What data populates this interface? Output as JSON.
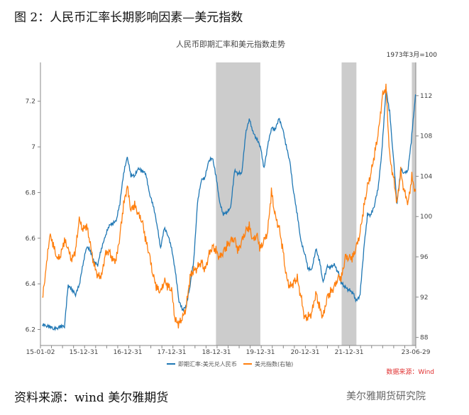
{
  "figure_title": "图 2：人民币汇率长期影响因素—美元指数",
  "source_note": "资料来源：wind 美尔雅期货",
  "watermark": "美尔雅期货研究院",
  "chart_data": {
    "type": "line",
    "title": "人民币即期汇率和美元指数走势",
    "right_axis_unit": "1973年3月=100",
    "data_source": "数据来源：Wind",
    "x_tick_labels": [
      "15-01-02",
      "15-12-31",
      "16-12-31",
      "17-12-31",
      "18-12-31",
      "19-12-31",
      "20-12-31",
      "21-12-31",
      "23-06-29"
    ],
    "left_axis": {
      "ticks": [
        "6.2",
        "6.4",
        "6.6",
        "6.8",
        "7",
        "7.2"
      ],
      "range": [
        6.13,
        7.37
      ]
    },
    "right_axis": {
      "ticks": [
        "88",
        "92",
        "96",
        "100",
        "104",
        "108",
        "112"
      ],
      "range": [
        87.2,
        115.3
      ]
    },
    "shaded_periods": [
      [
        "2018-12",
        "2019-12"
      ],
      [
        "2021-10",
        "2022-02"
      ],
      [
        "2023-05",
        "2023-06"
      ]
    ],
    "colors": {
      "cny": "#1f77b4",
      "dxy": "#ff7f0e",
      "shade": "#cccccc",
      "source": "#e03030"
    },
    "x": [
      "2015-01",
      "2015-02",
      "2015-03",
      "2015-04",
      "2015-05",
      "2015-06",
      "2015-07",
      "2015-08",
      "2015-09",
      "2015-10",
      "2015-11",
      "2015-12",
      "2016-01",
      "2016-02",
      "2016-03",
      "2016-04",
      "2016-05",
      "2016-06",
      "2016-07",
      "2016-08",
      "2016-09",
      "2016-10",
      "2016-11",
      "2016-12",
      "2017-01",
      "2017-02",
      "2017-03",
      "2017-04",
      "2017-05",
      "2017-06",
      "2017-07",
      "2017-08",
      "2017-09",
      "2017-10",
      "2017-11",
      "2017-12",
      "2018-01",
      "2018-02",
      "2018-03",
      "2018-04",
      "2018-05",
      "2018-06",
      "2018-07",
      "2018-08",
      "2018-09",
      "2018-10",
      "2018-11",
      "2018-12",
      "2019-01",
      "2019-02",
      "2019-03",
      "2019-04",
      "2019-05",
      "2019-06",
      "2019-07",
      "2019-08",
      "2019-09",
      "2019-10",
      "2019-11",
      "2019-12",
      "2020-01",
      "2020-02",
      "2020-03",
      "2020-04",
      "2020-05",
      "2020-06",
      "2020-07",
      "2020-08",
      "2020-09",
      "2020-10",
      "2020-11",
      "2020-12",
      "2021-01",
      "2021-02",
      "2021-03",
      "2021-04",
      "2021-05",
      "2021-06",
      "2021-07",
      "2021-08",
      "2021-09",
      "2021-10",
      "2021-11",
      "2021-12",
      "2022-01",
      "2022-02",
      "2022-03",
      "2022-04",
      "2022-05",
      "2022-06",
      "2022-07",
      "2022-08",
      "2022-09",
      "2022-10",
      "2022-11",
      "2022-12",
      "2023-01",
      "2023-02",
      "2023-03",
      "2023-04",
      "2023-05",
      "2023-06"
    ],
    "series": [
      {
        "name": "即期汇率:美元兑人民币",
        "axis": "left",
        "values": [
          6.22,
          6.21,
          6.21,
          6.2,
          6.2,
          6.21,
          6.21,
          6.39,
          6.37,
          6.35,
          6.39,
          6.48,
          6.56,
          6.54,
          6.49,
          6.48,
          6.55,
          6.6,
          6.65,
          6.66,
          6.67,
          6.75,
          6.88,
          6.95,
          6.87,
          6.87,
          6.9,
          6.89,
          6.88,
          6.79,
          6.74,
          6.66,
          6.55,
          6.64,
          6.61,
          6.55,
          6.45,
          6.32,
          6.28,
          6.3,
          6.39,
          6.5,
          6.75,
          6.85,
          6.86,
          6.93,
          6.95,
          6.87,
          6.75,
          6.7,
          6.71,
          6.73,
          6.89,
          6.88,
          6.88,
          7.05,
          7.12,
          7.06,
          7.03,
          7.0,
          6.9,
          7.0,
          7.08,
          7.07,
          7.12,
          7.08,
          7.0,
          6.93,
          6.8,
          6.7,
          6.58,
          6.53,
          6.46,
          6.46,
          6.55,
          6.5,
          6.4,
          6.47,
          6.47,
          6.48,
          6.45,
          6.4,
          6.38,
          6.37,
          6.36,
          6.32,
          6.35,
          6.55,
          6.7,
          6.7,
          6.75,
          6.83,
          7.0,
          7.25,
          7.15,
          6.95,
          6.75,
          6.9,
          6.88,
          6.9,
          7.05,
          7.23
        ]
      },
      {
        "name": "美元指数(右轴)",
        "axis": "right",
        "values": [
          91.5,
          94.5,
          98.0,
          97.0,
          95.5,
          96.0,
          97.5,
          96.5,
          95.5,
          96.5,
          99.5,
          98.5,
          99.0,
          97.0,
          95.0,
          94.0,
          93.8,
          96.0,
          96.5,
          95.5,
          95.5,
          98.0,
          101.0,
          102.8,
          100.5,
          101.0,
          100.0,
          99.5,
          97.5,
          96.0,
          94.0,
          92.8,
          92.3,
          93.5,
          93.0,
          92.5,
          89.5,
          89.3,
          89.8,
          91.0,
          94.0,
          94.5,
          94.8,
          95.5,
          94.5,
          96.0,
          97.0,
          96.5,
          95.8,
          96.5,
          97.0,
          97.5,
          97.8,
          96.5,
          97.5,
          98.5,
          99.0,
          97.5,
          98.2,
          96.8,
          97.5,
          98.5,
          102.5,
          100.0,
          99.0,
          97.0,
          94.0,
          93.0,
          93.5,
          93.8,
          92.0,
          90.0,
          90.0,
          90.5,
          92.5,
          91.0,
          90.0,
          92.0,
          92.5,
          93.0,
          94.0,
          94.0,
          96.0,
          96.0,
          96.0,
          97.0,
          98.5,
          101.0,
          103.0,
          104.5,
          106.5,
          108.5,
          112.0,
          113.0,
          106.0,
          104.0,
          101.5,
          104.5,
          102.5,
          101.5,
          104.0,
          102.5
        ]
      }
    ]
  }
}
